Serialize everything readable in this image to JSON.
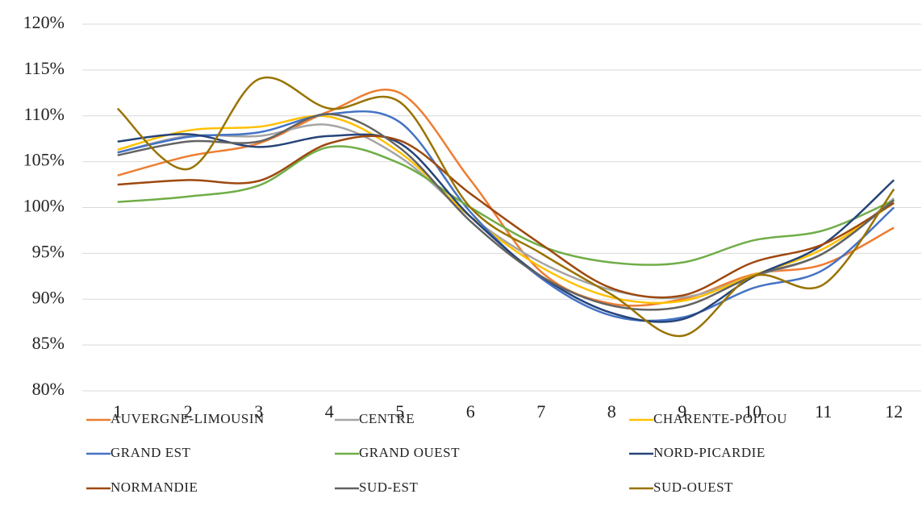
{
  "chart_data": {
    "type": "line",
    "categories": [
      "1",
      "2",
      "3",
      "4",
      "5",
      "6",
      "7",
      "8",
      "9",
      "10",
      "11",
      "12"
    ],
    "series": [
      {
        "name": "AUVERGNE-LIMOUSIN",
        "color": "#ed7d31",
        "values": [
          103.5,
          105.6,
          107,
          110.5,
          112.5,
          103,
          93,
          89.5,
          90,
          92.7,
          93.8,
          97.8
        ]
      },
      {
        "name": "CENTRE",
        "color": "#a5a5a5",
        "values": [
          106,
          107.8,
          107.8,
          109,
          105.5,
          99,
          94,
          91,
          90.2,
          92.5,
          95,
          101
        ]
      },
      {
        "name": "CHARENTE-POITOU",
        "color": "#ffc000",
        "values": [
          106.3,
          108.4,
          108.8,
          109.9,
          106,
          99,
          93.5,
          90.2,
          89.8,
          92.6,
          95.5,
          100.5
        ]
      },
      {
        "name": "GRAND EST",
        "color": "#4472c4",
        "values": [
          106,
          107.7,
          108.2,
          110.2,
          109.3,
          99.5,
          92.3,
          88.2,
          88,
          91.2,
          93.2,
          100
        ]
      },
      {
        "name": "GRAND OUEST",
        "color": "#70ad47",
        "values": [
          100.6,
          101.2,
          102.4,
          106.6,
          104.8,
          100,
          95.8,
          94,
          94,
          96.4,
          97.5,
          100.8
        ]
      },
      {
        "name": "NORD-PICARDIE",
        "color": "#264478",
        "values": [
          107.2,
          108,
          106.6,
          107.8,
          107,
          99,
          92.5,
          88.5,
          87.8,
          92.4,
          96,
          103
        ]
      },
      {
        "name": "NORMANDIE",
        "color": "#9e480e",
        "values": [
          102.5,
          103,
          102.9,
          107,
          107.3,
          101.5,
          96,
          91.2,
          90.4,
          94,
          96,
          100.5
        ]
      },
      {
        "name": "SUD-EST",
        "color": "#636363",
        "values": [
          105.7,
          107.2,
          107.2,
          110.2,
          106.5,
          98.5,
          92.5,
          89.3,
          89.2,
          92.5,
          95,
          100.8
        ]
      },
      {
        "name": "SUD-OUEST",
        "color": "#997300",
        "values": [
          110.8,
          104.2,
          114,
          110.8,
          111.5,
          100,
          95,
          90.5,
          86,
          92.5,
          91.6,
          102
        ]
      }
    ],
    "ylim": [
      80,
      120
    ],
    "yticks": [
      {
        "value": 80,
        "label": "80%"
      },
      {
        "value": 85,
        "label": "85%"
      },
      {
        "value": 90,
        "label": "90%"
      },
      {
        "value": 95,
        "label": "95%"
      },
      {
        "value": 100,
        "label": "100%"
      },
      {
        "value": 105,
        "label": "105%"
      },
      {
        "value": 110,
        "label": "110%"
      },
      {
        "value": 115,
        "label": "115%"
      },
      {
        "value": 120,
        "label": "120%"
      }
    ],
    "grid": true,
    "smooth": true,
    "legend": "bottom"
  }
}
